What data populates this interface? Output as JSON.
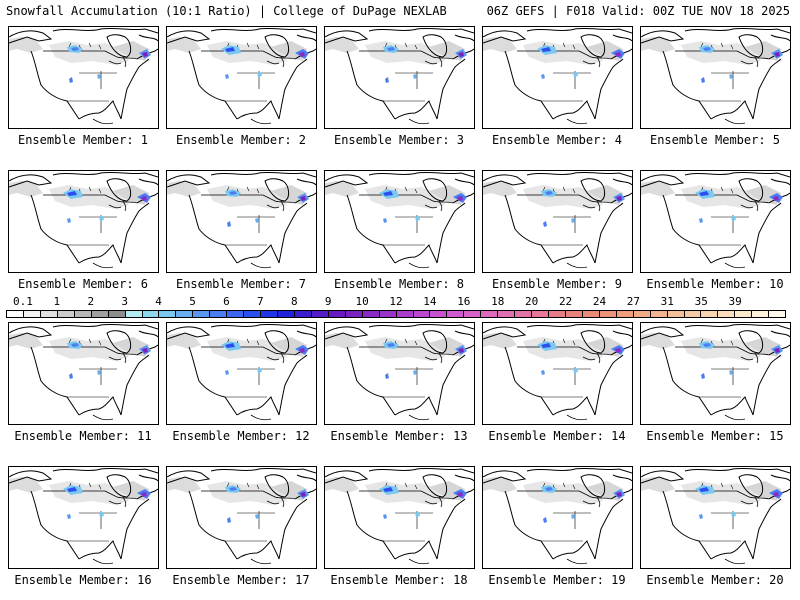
{
  "header": {
    "left": "Snowfall Accumulation (10:1 Ratio) | College of DuPage NEXLAB",
    "right": "06Z GEFS | F018 Valid: 00Z TUE NOV 18 2025"
  },
  "members": [
    {
      "label": "Ensemble Member: 1"
    },
    {
      "label": "Ensemble Member: 2"
    },
    {
      "label": "Ensemble Member: 3"
    },
    {
      "label": "Ensemble Member: 4"
    },
    {
      "label": "Ensemble Member: 5"
    },
    {
      "label": "Ensemble Member: 6"
    },
    {
      "label": "Ensemble Member: 7"
    },
    {
      "label": "Ensemble Member: 8"
    },
    {
      "label": "Ensemble Member: 9"
    },
    {
      "label": "Ensemble Member: 10"
    },
    {
      "label": "Ensemble Member: 11"
    },
    {
      "label": "Ensemble Member: 12"
    },
    {
      "label": "Ensemble Member: 13"
    },
    {
      "label": "Ensemble Member: 14"
    },
    {
      "label": "Ensemble Member: 15"
    },
    {
      "label": "Ensemble Member: 16"
    },
    {
      "label": "Ensemble Member: 17"
    },
    {
      "label": "Ensemble Member: 18"
    },
    {
      "label": "Ensemble Member: 19"
    },
    {
      "label": "Ensemble Member: 20"
    }
  ],
  "colorbar": {
    "labels": [
      {
        "text": "0.1",
        "edge": 1
      },
      {
        "text": "1",
        "edge": 3
      },
      {
        "text": "2",
        "edge": 5
      },
      {
        "text": "3",
        "edge": 7
      },
      {
        "text": "4",
        "edge": 9
      },
      {
        "text": "5",
        "edge": 11
      },
      {
        "text": "6",
        "edge": 13
      },
      {
        "text": "7",
        "edge": 15
      },
      {
        "text": "8",
        "edge": 17
      },
      {
        "text": "9",
        "edge": 19
      },
      {
        "text": "10",
        "edge": 21
      },
      {
        "text": "12",
        "edge": 23
      },
      {
        "text": "14",
        "edge": 25
      },
      {
        "text": "16",
        "edge": 27
      },
      {
        "text": "18",
        "edge": 29
      },
      {
        "text": "20",
        "edge": 31
      },
      {
        "text": "22",
        "edge": 33
      },
      {
        "text": "24",
        "edge": 35
      },
      {
        "text": "27",
        "edge": 37
      },
      {
        "text": "31",
        "edge": 39
      },
      {
        "text": "35",
        "edge": 41
      },
      {
        "text": "39",
        "edge": 43
      }
    ],
    "colors": [
      "#ffffff",
      "#f2f2f2",
      "#e0e0e0",
      "#cccccc",
      "#b8b8b8",
      "#a0a0a0",
      "#8c8c8c",
      "#b4ecf4",
      "#8fd8ec",
      "#7cc8f0",
      "#6aaef0",
      "#5a96f0",
      "#4a7ef0",
      "#3a66f0",
      "#2a4ef0",
      "#1e36e8",
      "#2222d8",
      "#3a1ed0",
      "#521cc8",
      "#681ac0",
      "#7a22c0",
      "#8a2ac4",
      "#9a34c8",
      "#aa3ecc",
      "#b848d0",
      "#c652d2",
      "#d05ad0",
      "#d862c8",
      "#de6abe",
      "#e070b2",
      "#e274a4",
      "#e47896",
      "#e67c88",
      "#e8827c",
      "#ea8a78",
      "#ec9478",
      "#ee9e7c",
      "#f0aa84",
      "#f2b48e",
      "#f4c098",
      "#f6caa4",
      "#f8d4b0",
      "#fadebe",
      "#fce8cc",
      "#fef2dc",
      "#fff8ea"
    ]
  }
}
